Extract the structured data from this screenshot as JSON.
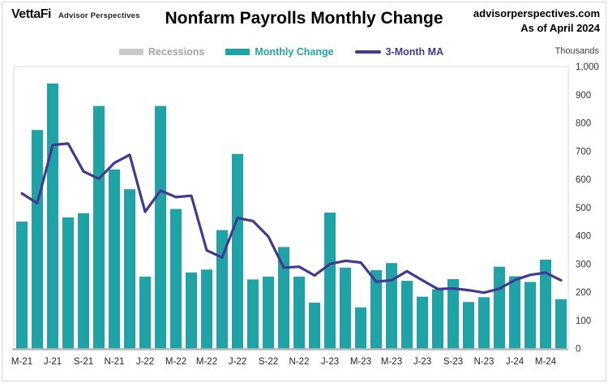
{
  "header": {
    "logo_text": "VettaFi",
    "logo_sub": "Advisor Perspectives",
    "title": "Nonfarm Payrolls Monthly Change",
    "source": "advisorperspectives.com",
    "as_of": "As of April 2024"
  },
  "legend": {
    "recessions": "Recessions",
    "monthly_change": "Monthly Change",
    "moving_average": "3-Month MA"
  },
  "axis": {
    "unit_label": "Thousands",
    "y_tick_values": [
      0,
      100,
      200,
      300,
      400,
      500,
      600,
      700,
      800,
      900,
      1000
    ],
    "y_tick_labels": [
      "0",
      "100",
      "200",
      "300",
      "400",
      "500",
      "600",
      "700",
      "800",
      "900",
      "1,000"
    ]
  },
  "colors": {
    "bar_teal": "#1fa3a6",
    "ma_purple": "#423a91",
    "recession_gray": "#c9c9c9",
    "recession_text": "#a3a3a3",
    "axis_text": "#333333",
    "baseline": "#b9b9b9",
    "plot_border": "#dadada"
  },
  "chart_data": {
    "type": "bar",
    "title": "Nonfarm Payrolls Monthly Change",
    "unit": "Thousands",
    "ylim": [
      0,
      1000
    ],
    "grid": false,
    "legend_position": "top",
    "months": [
      "May-21",
      "Jun-21",
      "Jul-21",
      "Aug-21",
      "Sep-21",
      "Oct-21",
      "Nov-21",
      "Dec-21",
      "Jan-22",
      "Feb-22",
      "Mar-22",
      "Apr-22",
      "May-22",
      "Jun-22",
      "Jul-22",
      "Aug-22",
      "Sep-22",
      "Oct-22",
      "Nov-22",
      "Dec-22",
      "Jan-23",
      "Feb-23",
      "Mar-23",
      "Apr-23",
      "May-23",
      "Jun-23",
      "Jul-23",
      "Aug-23",
      "Sep-23",
      "Oct-23",
      "Nov-23",
      "Dec-23",
      "Jan-24",
      "Feb-24",
      "Mar-24",
      "Apr-24"
    ],
    "x_tick_labels": [
      "M-21",
      "J-21",
      "S-21",
      "N-21",
      "J-22",
      "M-22",
      "M-22",
      "J-22",
      "S-22",
      "N-22",
      "J-23",
      "M-23",
      "M-23",
      "J-23",
      "S-23",
      "N-23",
      "J-24",
      "M-24"
    ],
    "series": [
      {
        "name": "Monthly Change",
        "type": "bar",
        "color": "#1fa3a6",
        "values": [
          450,
          775,
          940,
          465,
          480,
          860,
          635,
          565,
          255,
          860,
          495,
          270,
          280,
          420,
          690,
          245,
          255,
          360,
          255,
          163,
          482,
          287,
          146,
          278,
          303,
          240,
          184,
          210,
          246,
          165,
          182,
          290,
          256,
          236,
          315,
          175
        ]
      },
      {
        "name": "3-Month MA",
        "type": "line",
        "color": "#423a91",
        "values": [
          550,
          515,
          722,
          727,
          628,
          602,
          658,
          687,
          485,
          560,
          537,
          542,
          348,
          323,
          463,
          452,
          397,
          287,
          290,
          259,
          300,
          311,
          305,
          237,
          242,
          274,
          242,
          211,
          213,
          207,
          198,
          212,
          243,
          261,
          269,
          242
        ]
      }
    ]
  }
}
